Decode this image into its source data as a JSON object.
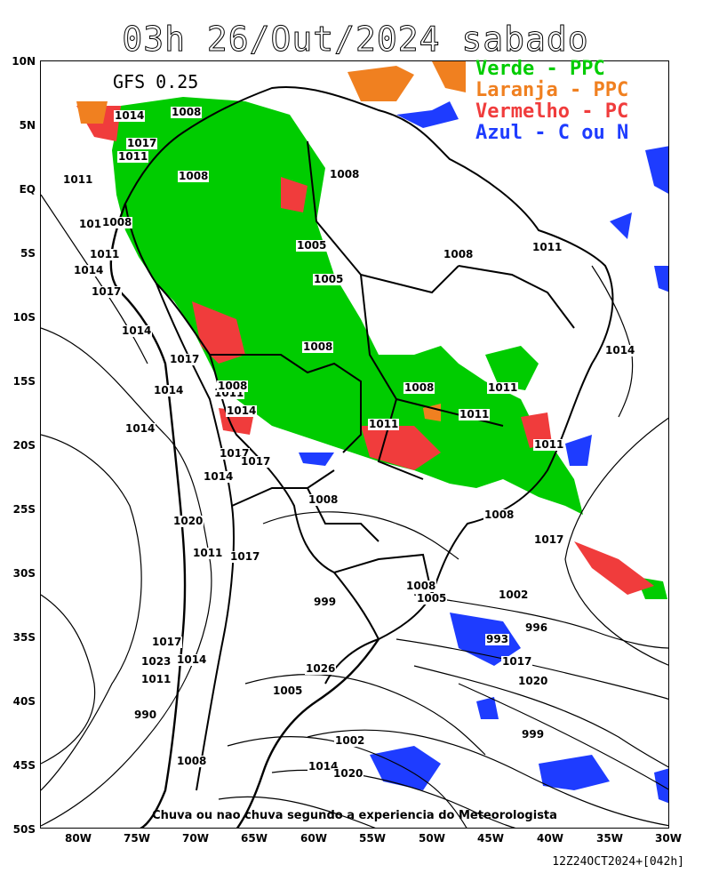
{
  "title": "03h 26/Out/2024 sabado",
  "model_label": "GFS 0.25",
  "legend": [
    {
      "text": "Verde - PPC",
      "color": "#00cc00"
    },
    {
      "text": "Laranja - PPC",
      "color": "#f08020"
    },
    {
      "text": "Vermelho - PC",
      "color": "#f03c3c"
    },
    {
      "text": "Azul - C ou N",
      "color": "#1e3cff"
    }
  ],
  "caption": "Chuva ou nao chuva segundo a experiencia do Meteorologista",
  "footer": "12Z24OCT2024+[042h]",
  "lat_ticks": [
    "10N",
    "5N",
    "EQ",
    "5S",
    "10S",
    "15S",
    "20S",
    "25S",
    "30S",
    "35S",
    "40S",
    "45S",
    "50S"
  ],
  "lon_ticks": [
    "80W",
    "75W",
    "70W",
    "65W",
    "60W",
    "55W",
    "50W",
    "45W",
    "40W",
    "35W",
    "30W"
  ],
  "isobar_labels": [
    "1014",
    "1008",
    "1017",
    "1011",
    "1011",
    "1008",
    "1008",
    "1017",
    "1008",
    "1011",
    "1005",
    "1005",
    "1008",
    "1011",
    "1014",
    "1011",
    "1017",
    "1014",
    "1008",
    "1014",
    "1017",
    "1008",
    "1011",
    "1014",
    "1011",
    "1008",
    "1014",
    "1011",
    "1014",
    "1011",
    "1017",
    "1017",
    "1011",
    "1014",
    "1008",
    "1008",
    "1020",
    "1017",
    "1011",
    "1017",
    "1008",
    "1005",
    "1002",
    "999",
    "996",
    "993",
    "1017",
    "1020",
    "1017",
    "1023",
    "1014",
    "1011",
    "1026",
    "1005",
    "990",
    "1002",
    "999",
    "1014",
    "1020",
    "1008"
  ]
}
